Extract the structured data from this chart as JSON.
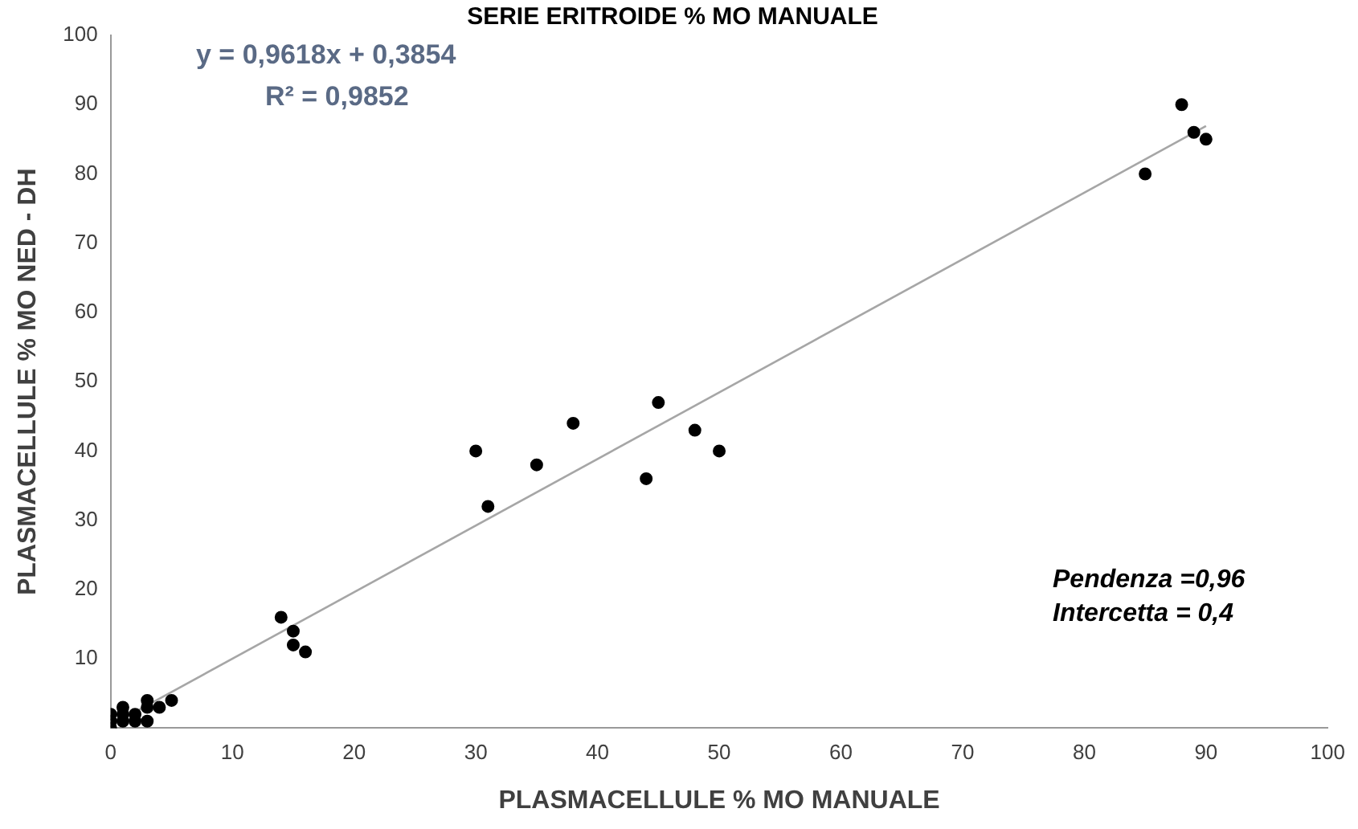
{
  "chart_data": {
    "type": "scatter",
    "title": "SERIE ERITROIDE % MO MANUALE",
    "xlabel": "PLASMACELLULE % MO MANUALE",
    "ylabel": "PLASMACELLULE % MO NED - DH",
    "series": [
      {
        "color": "#000000",
        "x": [
          0,
          0,
          0,
          1,
          1,
          1,
          2,
          2,
          3,
          3,
          3,
          4,
          5,
          14,
          15,
          15,
          16,
          30,
          31,
          35,
          38,
          44,
          45,
          48,
          50,
          85,
          88,
          89,
          90
        ],
        "values": [
          2,
          1,
          0,
          3,
          2,
          1,
          2,
          1,
          4,
          3,
          1,
          3,
          4,
          16,
          14,
          12,
          11,
          40,
          32,
          38,
          44,
          36,
          47,
          43,
          40,
          80,
          90,
          86,
          85
        ]
      },
      {
        "type": "line",
        "color": "#a6a6a6",
        "x": [
          0,
          90
        ],
        "values": [
          0.4,
          86.9
        ],
        "marker": "none"
      }
    ],
    "marker": "circle",
    "xlim": [
      0,
      100
    ],
    "ylim": [
      0,
      100
    ],
    "xticks": [
      0,
      10,
      20,
      30,
      40,
      50,
      60,
      70,
      80,
      90,
      100
    ],
    "yticks": [
      10,
      20,
      30,
      40,
      50,
      60,
      70,
      80,
      90,
      100
    ],
    "grid": false,
    "legend": false,
    "annotations": [
      "y = 0,9618x + 0,3854",
      "R² = 0,9852",
      "Pendenza =0,96",
      "Intercetta = 0,4"
    ]
  }
}
